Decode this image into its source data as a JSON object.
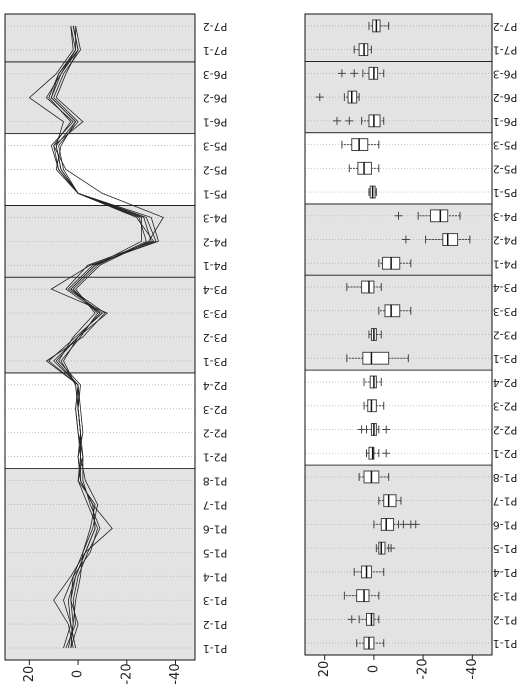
{
  "chart_data": [
    {
      "type": "line",
      "categories": [
        "P1-1",
        "P1-2",
        "P1-3",
        "P1-4",
        "P1-5",
        "P1-6",
        "P1-7",
        "P1-8",
        "P2-1",
        "P2-2",
        "P2-3",
        "P2-4",
        "P3-1",
        "P3-2",
        "P3-3",
        "P3-4",
        "P4-1",
        "P4-2",
        "P4-3",
        "P5-1",
        "P5-2",
        "P5-3",
        "P6-1",
        "P6-2",
        "P6-3",
        "P7-1",
        "P7-2"
      ],
      "ylim": [
        -48,
        30
      ],
      "yticks": [
        20,
        0,
        -20,
        -40
      ],
      "grid": true,
      "series": [
        {
          "color": "#222222",
          "values": [
            3,
            2,
            3,
            1,
            -3,
            -7,
            -6,
            -1,
            -1,
            -1,
            0,
            0,
            9,
            0,
            -9,
            3,
            -7,
            -30,
            -27,
            0,
            7,
            9,
            1,
            11,
            7,
            0,
            2
          ]
        },
        {
          "color": "#222222",
          "values": [
            1,
            3,
            6,
            2,
            -2,
            -5,
            -7,
            0,
            -1,
            0,
            1,
            0,
            12,
            1,
            -10,
            4,
            -6,
            -32,
            -28,
            0,
            8,
            10,
            3,
            12,
            8,
            1,
            3
          ]
        },
        {
          "color": "#222222",
          "values": [
            5,
            1,
            2,
            0,
            -4,
            -9,
            -5,
            -2,
            -2,
            -1,
            0,
            1,
            7,
            -1,
            -8,
            2,
            -8,
            -28,
            -25,
            0,
            6,
            8,
            0,
            10,
            6,
            -1,
            1
          ]
        },
        {
          "color": "#222222",
          "values": [
            2,
            4,
            10,
            3,
            -3,
            -14,
            -6,
            -1,
            0,
            -2,
            -1,
            0,
            10,
            0,
            -12,
            11,
            -5,
            -33,
            -30,
            0,
            7,
            9,
            6,
            20,
            9,
            2,
            3
          ]
        },
        {
          "color": "#222222",
          "values": [
            4,
            2,
            1,
            -1,
            -2,
            -6,
            -8,
            -3,
            -1,
            -1,
            0,
            -1,
            8,
            2,
            -7,
            1,
            -9,
            -29,
            -35,
            -10,
            5,
            10,
            -2,
            9,
            5,
            0,
            2
          ]
        },
        {
          "color": "#222222",
          "values": [
            3,
            0,
            3,
            2,
            -5,
            -8,
            -4,
            0,
            -2,
            0,
            1,
            0,
            13,
            -2,
            -11,
            3,
            -7,
            -26,
            -26,
            0,
            8,
            11,
            2,
            13,
            7,
            1,
            1
          ]
        },
        {
          "color": "#222222",
          "values": [
            6,
            3,
            4,
            1,
            -3,
            -7,
            -6,
            -1,
            0,
            -1,
            0,
            1,
            6,
            0,
            -9,
            5,
            -4,
            -31,
            -24,
            0,
            9,
            7,
            1,
            11,
            8,
            0,
            2
          ]
        }
      ]
    },
    {
      "type": "box",
      "categories": [
        "P1-1",
        "P1-2",
        "P1-3",
        "P1-4",
        "P1-5",
        "P1-6",
        "P1-7",
        "P1-8",
        "P2-1",
        "P2-2",
        "P2-3",
        "P2-4",
        "P3-1",
        "P3-2",
        "P3-3",
        "P3-4",
        "P4-1",
        "P4-2",
        "P4-3",
        "P5-1",
        "P5-2",
        "P5-3",
        "P6-1",
        "P6-2",
        "P6-3",
        "P7-1",
        "P7-2"
      ],
      "ylim": [
        -48,
        28
      ],
      "yticks": [
        20,
        0,
        -20,
        -40
      ],
      "grid": true,
      "color": "#444444",
      "boxes": [
        {
          "whislo": -4,
          "q1": 0,
          "med": 2,
          "q3": 4,
          "whishi": 7,
          "fliers": []
        },
        {
          "whislo": -2,
          "q1": 0,
          "med": 1,
          "q3": 3,
          "whishi": 6,
          "fliers": [
            9
          ]
        },
        {
          "whislo": -2,
          "q1": 2,
          "med": 4,
          "q3": 7,
          "whishi": 12,
          "fliers": []
        },
        {
          "whislo": -4,
          "q1": 1,
          "med": 3,
          "q3": 5,
          "whishi": 8,
          "fliers": []
        },
        {
          "whislo": -6,
          "q1": -4.5,
          "med": -3,
          "q3": -2,
          "whishi": -1,
          "fliers": [
            -7
          ]
        },
        {
          "whislo": -10,
          "q1": -8,
          "med": -5,
          "q3": -3,
          "whishi": 0,
          "fliers": [
            -12,
            -15,
            -17
          ]
        },
        {
          "whislo": -11,
          "q1": -9,
          "med": -6,
          "q3": -4,
          "whishi": -2,
          "fliers": []
        },
        {
          "whislo": -6,
          "q1": -2,
          "med": 1,
          "q3": 4,
          "whishi": 6,
          "fliers": []
        },
        {
          "whislo": -2,
          "q1": 0,
          "med": 0.5,
          "q3": 2,
          "whishi": 3,
          "fliers": [
            -5
          ]
        },
        {
          "whislo": -2,
          "q1": -1,
          "med": 0,
          "q3": 1,
          "whishi": 3,
          "fliers": [
            5,
            -5
          ]
        },
        {
          "whislo": -4,
          "q1": -1,
          "med": 1,
          "q3": 2.5,
          "whishi": 4,
          "fliers": []
        },
        {
          "whislo": -3,
          "q1": -1,
          "med": 0,
          "q3": 1.5,
          "whishi": 4,
          "fliers": []
        },
        {
          "whislo": -14,
          "q1": -6,
          "med": 1,
          "q3": 4.5,
          "whishi": 11,
          "fliers": []
        },
        {
          "whislo": -3,
          "q1": -1,
          "med": 0,
          "q3": 1,
          "whishi": 2,
          "fliers": []
        },
        {
          "whislo": -15,
          "q1": -10.5,
          "med": -7,
          "q3": -4.5,
          "whishi": -2,
          "fliers": []
        },
        {
          "whislo": -3,
          "q1": 0,
          "med": 2,
          "q3": 5,
          "whishi": 11,
          "fliers": []
        },
        {
          "whislo": -15,
          "q1": -10.5,
          "med": -7,
          "q3": -3.5,
          "whishi": -2,
          "fliers": []
        },
        {
          "whislo": -39,
          "q1": -34,
          "med": -30,
          "q3": -28,
          "whishi": -21,
          "fliers": [
            -13
          ]
        },
        {
          "whislo": -35,
          "q1": -30,
          "med": -27,
          "q3": -23,
          "whishi": -18,
          "fliers": [
            -10
          ]
        },
        {
          "whislo": -1,
          "q1": -0.5,
          "med": 0.5,
          "q3": 1.5,
          "whishi": 2,
          "fliers": []
        },
        {
          "whislo": -2,
          "q1": 1,
          "med": 4,
          "q3": 6.5,
          "whishi": 10,
          "fliers": []
        },
        {
          "whislo": -2,
          "q1": 2.5,
          "med": 6,
          "q3": 9,
          "whishi": 13,
          "fliers": []
        },
        {
          "whislo": -4,
          "q1": -2.5,
          "med": 0,
          "q3": 2,
          "whishi": 5,
          "fliers": [
            10,
            15
          ]
        },
        {
          "whislo": 6,
          "q1": 7,
          "med": 9,
          "q3": 10.5,
          "whishi": 12,
          "fliers": [
            22
          ]
        },
        {
          "whislo": -4,
          "q1": -1.5,
          "med": 0,
          "q3": 2,
          "whishi": 4.5,
          "fliers": [
            8,
            13
          ]
        },
        {
          "whislo": 1,
          "q1": 2.5,
          "med": 4,
          "q3": 6,
          "whishi": 8,
          "fliers": []
        },
        {
          "whislo": -6,
          "q1": -2.5,
          "med": -1,
          "q3": 0.5,
          "whishi": 2,
          "fliers": []
        }
      ]
    }
  ]
}
